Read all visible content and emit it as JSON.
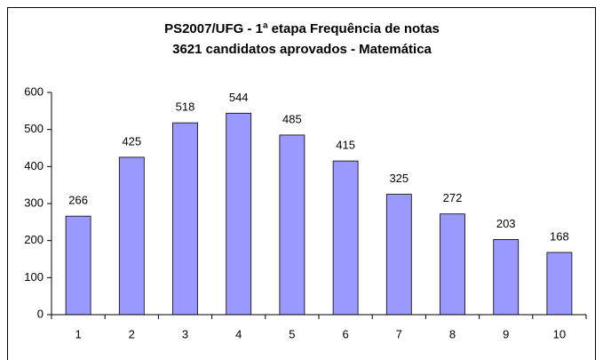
{
  "chart_data": {
    "type": "bar",
    "title": "PS2007/UFG - 1ª etapa Frequência de notas",
    "subtitle": "3621 candidatos aprovados - Matemática",
    "categories": [
      "1",
      "2",
      "3",
      "4",
      "5",
      "6",
      "7",
      "8",
      "9",
      "10"
    ],
    "values": [
      266,
      425,
      518,
      544,
      485,
      415,
      325,
      272,
      203,
      168
    ],
    "color": "#9999ff",
    "ylim": [
      0,
      600
    ],
    "yticks": [
      0,
      100,
      200,
      300,
      400,
      500,
      600
    ],
    "grid": false
  }
}
